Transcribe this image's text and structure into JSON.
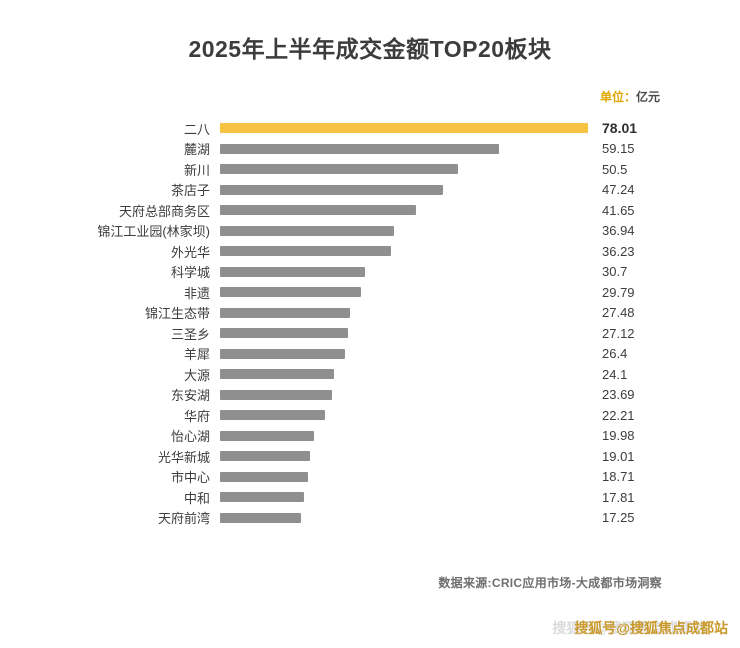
{
  "chart_data": {
    "type": "bar",
    "orientation": "horizontal",
    "title": "2025年上半年成交金额TOP20板块",
    "unit_prefix": "单位：",
    "unit_suffix": "亿元",
    "categories": [
      "二八",
      "麓湖",
      "新川",
      "茶店子",
      "天府总部商务区",
      "锦江工业园(林家坝)",
      "外光华",
      "科学城",
      "非遗",
      "锦江生态带",
      "三圣乡",
      "羊犀",
      "大源",
      "东安湖",
      "华府",
      "怡心湖",
      "光华新城",
      "市中心",
      "中和",
      "天府前湾"
    ],
    "values": [
      78.01,
      59.15,
      50.5,
      47.24,
      41.65,
      36.94,
      36.23,
      30.7,
      29.79,
      27.48,
      27.12,
      26.4,
      24.1,
      23.69,
      22.21,
      19.98,
      19.01,
      18.71,
      17.81,
      17.25
    ],
    "xlim": [
      0,
      78.01
    ],
    "highlight_index": 0,
    "grid": false,
    "legend": false,
    "colors": {
      "highlight": "#f6c344",
      "default": "#8f8f8f"
    }
  },
  "footer": {
    "source": "数据来源:CRIC应用市场-大成都市场洞察",
    "watermark": "搜狐号@搜狐焦点成都站"
  }
}
